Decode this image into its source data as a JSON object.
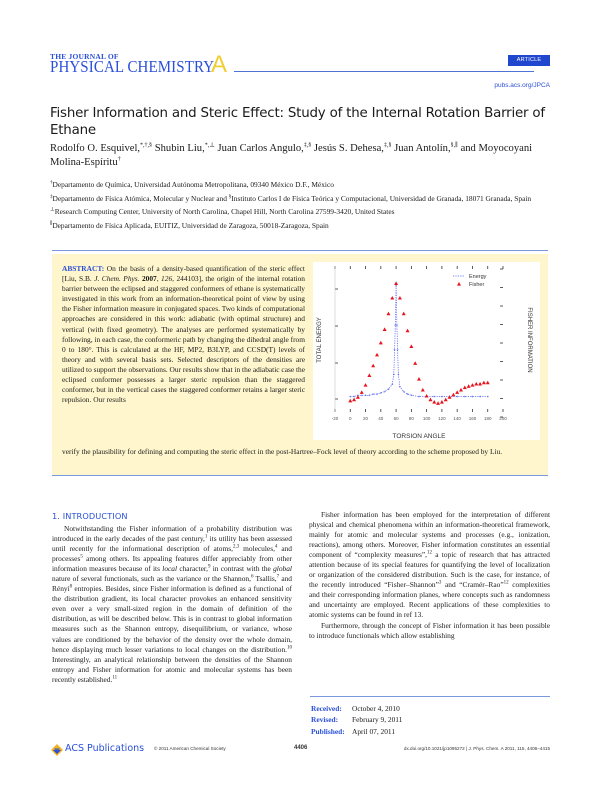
{
  "header": {
    "journal_line1": "THE JOURNAL OF",
    "journal_line2": "PHYSICAL CHEMISTRY",
    "journal_letter": "A",
    "badge": "ARTICLE",
    "url": "pubs.acs.org/JPCA"
  },
  "article": {
    "title": "Fisher Information and Steric Effect: Study of the Internal Rotation Barrier of Ethane",
    "authors": [
      {
        "name": "Rodolfo O. Esquivel,",
        "marks": "*,†,§"
      },
      {
        "name": "Shubin Liu,",
        "marks": "*,⊥"
      },
      {
        "name": "Juan Carlos Angulo,",
        "marks": "‡,§"
      },
      {
        "name": "Jesús S. Dehesa,",
        "marks": "‡,§"
      },
      {
        "name": "Juan Antolín,",
        "marks": "§,∥"
      },
      {
        "name": "and Moyocoyani Molina-Espíritu",
        "marks": "†"
      }
    ],
    "affiliations": [
      {
        "mark": "†",
        "text": "Departamento de Química, Universidad Autónoma Metropolitana, 09340 México D.F., México"
      },
      {
        "mark": "‡",
        "text": "Departamento de Física Atómica, Molecular y Nuclear and ",
        "mark2": "§",
        "text2": "Instituto Carlos I de Física Teórica y Computacional, Universidad de Granada, 18071 Granada, Spain"
      },
      {
        "mark": "⊥",
        "text": "Research Computing Center, University of North Carolina, Chapel Hill, North Carolina 27599-3420, United States"
      },
      {
        "mark": "∥",
        "text": "Departamento de Física Aplicada, EUITIZ, Universidad de Zaragoza, 50018-Zaragoza, Spain"
      }
    ]
  },
  "abstract": {
    "label": "ABSTRACT:",
    "text_part1": " On the basis of a density-based quantification of the steric effect [Liu, S.B. ",
    "cite_journal": "J. Chem. Phys.",
    "cite_year": " 2007",
    "cite_vol": ", 126,",
    "text_part2": " 244103], the origin of the internal rotation barrier between the eclipsed and staggered conformers of ethane is systematically investigated in this work from an information-theoretical point of view by using the Fisher information measure in conjugated spaces. Two kinds of computational approaches are considered in this work: adiabatic (with optimal structure) and vertical (with fixed geometry). The analyses are performed systematically by following, in each case, the conformeric path by changing the dihedral angle from 0 to 180°. This is calculated at the HF, MP2, B3LYP, and CCSD(T) levels of theory and with several basis sets. Selected descriptors of the densities are utilized to support the observations. Our results show that in the adiabatic case the eclipsed conformer possesses a larger steric repulsion than the staggered conformer, but in the vertical cases the staggered conformer retains a larger steric repulsion. Our results",
    "text_tail": "verify the plausibility for defining and computing the steric effect in the post-Hartree–Fock level of theory according to the scheme proposed by Liu."
  },
  "chart_data": {
    "type": "scatter",
    "title": "",
    "xlabel": "TORSION ANGLE",
    "ylabel": "TOTAL ENERGY",
    "y2label": "FISHER INFORMATION",
    "xlim": [
      -20,
      200
    ],
    "xticks": [
      -20,
      0,
      20,
      40,
      60,
      80,
      100,
      120,
      140,
      160,
      180,
      200
    ],
    "legend": [
      "Energy",
      "Fisher"
    ],
    "legend_position": "upper right",
    "series": [
      {
        "name": "Energy",
        "color": "#4a5cf0",
        "marker": "dashed-line-small-markers",
        "x": [
          0,
          5,
          10,
          15,
          20,
          25,
          30,
          35,
          40,
          45,
          50,
          55,
          57,
          58,
          59,
          60,
          61,
          62,
          63,
          65,
          70,
          75,
          80,
          90,
          100,
          110,
          120,
          130,
          140,
          150,
          160,
          170,
          180
        ],
        "values_rel": [
          0.02,
          0.02,
          0.03,
          0.03,
          0.03,
          0.03,
          0.04,
          0.04,
          0.05,
          0.06,
          0.08,
          0.12,
          0.2,
          0.4,
          0.6,
          0.92,
          0.6,
          0.4,
          0.2,
          0.1,
          0.06,
          0.04,
          0.03,
          0.02,
          0.02,
          0.02,
          0.02,
          0.02,
          0.02,
          0.02,
          0.02,
          0.02,
          0.02
        ]
      },
      {
        "name": "Fisher",
        "color": "#e8141e",
        "marker": "triangle",
        "x": [
          0,
          5,
          10,
          15,
          20,
          25,
          30,
          35,
          40,
          45,
          50,
          55,
          60,
          65,
          70,
          75,
          80,
          85,
          90,
          95,
          100,
          105,
          110,
          115,
          120,
          125,
          130,
          135,
          140,
          145,
          150,
          155,
          160,
          165,
          170,
          175,
          180
        ],
        "values_rel": [
          0.0,
          0.01,
          0.03,
          0.07,
          0.13,
          0.21,
          0.29,
          0.38,
          0.48,
          0.59,
          0.72,
          0.85,
          0.97,
          0.85,
          0.72,
          0.58,
          0.45,
          0.31,
          0.18,
          0.09,
          0.04,
          0.01,
          -0.01,
          -0.02,
          -0.01,
          0.01,
          0.03,
          0.05,
          0.07,
          0.09,
          0.11,
          0.12,
          0.13,
          0.14,
          0.14,
          0.15,
          0.15
        ]
      }
    ]
  },
  "intro": {
    "heading": "1. INTRODUCTION",
    "left_p1_a": "Notwithstanding the Fisher information of a probability distribution was introduced in the early decades of the past century,",
    "left_p1_s1": "1",
    "left_p1_b": " its utility has been assessed until recently for the informational description of atoms,",
    "left_p1_s2": "2,3",
    "left_p1_c": " molecules,",
    "left_p1_s3": "4",
    "left_p1_d": " and processes",
    "left_p1_s4": "5",
    "left_p1_e": " among others. Its appealing features differ appreciably from other information measures because of its ",
    "left_p1_i1": "local",
    "left_p1_f": " character,",
    "left_p1_s5": "9",
    "left_p1_g": " in contrast with the ",
    "left_p1_i2": "global",
    "left_p1_h": " nature of several functionals, such as the variance or the Shannon,",
    "left_p1_s6": "6",
    "left_p1_j": " Tsallis,",
    "left_p1_s7": "7",
    "left_p1_k": " and Rényi",
    "left_p1_s8": "8",
    "left_p1_l": " entropies. Besides, since Fisher information is defined as a functional of the distribution gradient, its local character provokes an enhanced sensitivity even over a very small-sized region in the domain of definition of the distribution, as will be described below. This is in contrast to global information measures such as the Shannon entropy, disequilibrium, or variance, whose values are conditioned by the behavior of the density over the whole domain, hence displaying much lesser variations to local changes on the distribution.",
    "left_p1_s9": "10",
    "left_p1_m": " Interestingly, an analytical relationship between the densities of the Shannon entropy and Fisher information for atomic and molecular systems has been recently established.",
    "left_p1_s10": "11",
    "right_p1_a": "Fisher information has been employed for the interpretation of different physical and chemical phenomena within an information-theoretical framework, mainly for atomic and molecular systems and processes (e.g., ionization, reactions), among others. Moreover, Fisher information constitutes an essential component of “complexity measures”,",
    "right_p1_s1": "12",
    "right_p1_b": " a topic of research that has attracted attention because of its special features for quantifying the level of localization or organization of the considered distribution. Such is the case, for instance, of the recently introduced “Fisher–Shannon”",
    "right_p1_s2": "3",
    "right_p1_c": " and “Cramér–Rao”",
    "right_p1_s3": "12",
    "right_p1_d": " complexities and their corresponding information planes, where concepts such as randomness and uncertainty are employed. Recent applications of these complexities to atomic systems can be found in ref 13.",
    "right_p2": "Furthermore, through the concept of Fisher information it has been possible to introduce functionals which allow establishing"
  },
  "dates": {
    "received_label": "Received:",
    "received": "October 4, 2010",
    "revised_label": "Revised:",
    "revised": "February 9, 2011",
    "published_label": "Published:",
    "published": "April 07, 2011"
  },
  "footer": {
    "publisher": "ACS Publications",
    "copyright": "© 2011 American Chemical Society",
    "page": "4406",
    "doi": "dx.doi.org/10.1021/jp1095272 | J. Phys. Chem. A 2011, 115, 4406–4415"
  },
  "colors": {
    "brand_blue": "#2a4fd8",
    "accent_yellow": "#f0cf33",
    "abstract_bg": "#fff6cd",
    "rule_blue": "#7a98e0",
    "energy_series": "#4a5cf0",
    "fisher_series": "#e8141e"
  }
}
